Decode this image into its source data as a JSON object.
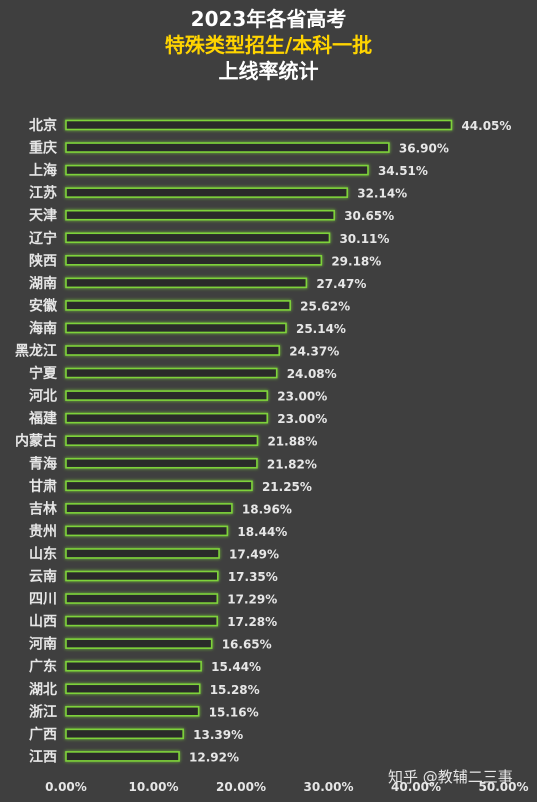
{
  "title": {
    "line1": "2023年各省高考",
    "line2": "特殊类型招生/本科一批",
    "line3": "上线率统计"
  },
  "watermark": "知乎 @教辅二三事",
  "colors": {
    "background": "#3f3f3f",
    "bar_fill": "#2b2b2b",
    "bar_glow": "#7ed23a",
    "title_highlight": "#ffd400",
    "text": "#e6e6e6"
  },
  "chart_data": {
    "type": "bar",
    "orientation": "horizontal",
    "categories": [
      "北京",
      "重庆",
      "上海",
      "江苏",
      "天津",
      "辽宁",
      "陕西",
      "湖南",
      "安徽",
      "海南",
      "黑龙江",
      "宁夏",
      "河北",
      "福建",
      "内蒙古",
      "青海",
      "甘肃",
      "吉林",
      "贵州",
      "山东",
      "云南",
      "四川",
      "山西",
      "河南",
      "广东",
      "湖北",
      "浙江",
      "广西",
      "江西"
    ],
    "values": [
      44.05,
      36.9,
      34.51,
      32.14,
      30.65,
      30.11,
      29.18,
      27.47,
      25.62,
      25.14,
      24.37,
      24.08,
      23.0,
      23.0,
      21.88,
      21.82,
      21.25,
      18.96,
      18.44,
      17.49,
      17.35,
      17.29,
      17.28,
      16.65,
      15.44,
      15.28,
      15.16,
      13.39,
      12.92
    ],
    "value_labels": [
      "44.05%",
      "36.90%",
      "34.51%",
      "32.14%",
      "30.65%",
      "30.11%",
      "29.18%",
      "27.47%",
      "25.62%",
      "25.14%",
      "24.37%",
      "24.08%",
      "23.00%",
      "23.00%",
      "21.88%",
      "21.82%",
      "21.25%",
      "18.96%",
      "18.44%",
      "17.49%",
      "17.35%",
      "17.29%",
      "17.28%",
      "16.65%",
      "15.44%",
      "15.28%",
      "15.16%",
      "13.39%",
      "12.92%"
    ],
    "x_ticks": [
      0,
      10,
      20,
      30,
      40,
      50
    ],
    "x_tick_labels": [
      "0.00%",
      "10.00%",
      "20.00%",
      "30.00%",
      "40.00%",
      "50.00%"
    ],
    "xlim": [
      0,
      50
    ],
    "grid": false,
    "legend": "none"
  }
}
